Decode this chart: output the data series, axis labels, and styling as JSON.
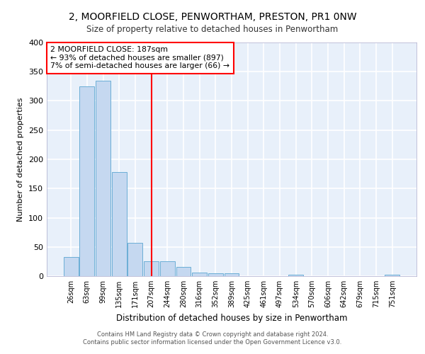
{
  "title_line1": "2, MOORFIELD CLOSE, PENWORTHAM, PRESTON, PR1 0NW",
  "title_line2": "Size of property relative to detached houses in Penwortham",
  "xlabel": "Distribution of detached houses by size in Penwortham",
  "ylabel": "Number of detached properties",
  "footer_line1": "Contains HM Land Registry data © Crown copyright and database right 2024.",
  "footer_line2": "Contains public sector information licensed under the Open Government Licence v3.0.",
  "bar_labels": [
    "26sqm",
    "63sqm",
    "99sqm",
    "135sqm",
    "171sqm",
    "207sqm",
    "244sqm",
    "280sqm",
    "316sqm",
    "352sqm",
    "389sqm",
    "425sqm",
    "461sqm",
    "497sqm",
    "534sqm",
    "570sqm",
    "606sqm",
    "642sqm",
    "679sqm",
    "715sqm",
    "751sqm"
  ],
  "bar_values": [
    33,
    325,
    335,
    178,
    57,
    25,
    25,
    16,
    6,
    5,
    5,
    0,
    0,
    0,
    3,
    0,
    0,
    0,
    0,
    0,
    3
  ],
  "bar_color": "#c5d8f0",
  "bar_edge_color": "#6baed6",
  "background_color": "#e8f0fa",
  "grid_color": "#ffffff",
  "annotation_text": "2 MOORFIELD CLOSE: 187sqm\n← 93% of detached houses are smaller (897)\n7% of semi-detached houses are larger (66) →",
  "annotation_box_color": "white",
  "annotation_box_edge_color": "red",
  "vline_x_index": 5.0,
  "vline_color": "red",
  "ylim": [
    0,
    400
  ],
  "yticks": [
    0,
    50,
    100,
    150,
    200,
    250,
    300,
    350,
    400
  ]
}
